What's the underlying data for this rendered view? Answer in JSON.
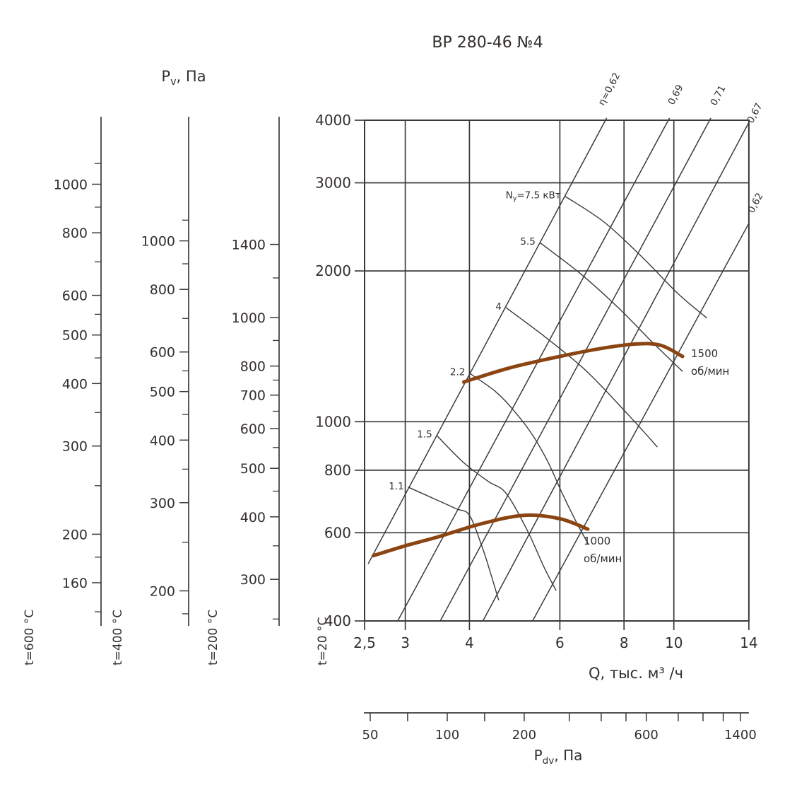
{
  "title": "ВР 280-46 №4",
  "labels": {
    "pv": {
      "base": "P",
      "sub": "v",
      "rest": ", Па"
    },
    "pdv": {
      "base": "P",
      "sub": "dv",
      "rest": ", Па"
    },
    "q_axis": "Q, тыс. м³ /ч"
  },
  "chart_data": {
    "type": "line",
    "x_axis": {
      "label": "Q, тыс. м³ /ч",
      "scale": "log",
      "range": [
        2.5,
        14
      ],
      "tick_values": [
        2.5,
        3,
        4,
        6,
        8,
        10,
        14
      ],
      "tick_labels": [
        "2,5",
        "3",
        "4",
        "6",
        "8",
        "10",
        "14"
      ],
      "grid_values": [
        3,
        4,
        6,
        8,
        10
      ]
    },
    "y_axis": {
      "label": "Pv, Па",
      "scale": "log",
      "range": [
        400,
        4000
      ],
      "tick_values": [
        4000,
        3000,
        2000,
        1000,
        800,
        600,
        400
      ],
      "grid_values": [
        3000,
        2000,
        1000,
        800,
        600
      ]
    },
    "left_scales": [
      {
        "t_label": "t=600 °C",
        "factor": 0.3356,
        "labeled_ticks": [
          1000,
          800,
          600,
          500,
          400,
          300,
          200,
          160
        ],
        "minor_ticks": [
          1100,
          900,
          700,
          550,
          450,
          350,
          250,
          180,
          140
        ]
      },
      {
        "t_label": "t=400 °C",
        "factor": 0.4354,
        "labeled_ticks": [
          1000,
          800,
          600,
          500,
          400,
          300,
          200
        ],
        "minor_ticks": [
          1100,
          900,
          700,
          550,
          450,
          350,
          250,
          180,
          160
        ]
      },
      {
        "t_label": "t=200 °C",
        "factor": 0.6195,
        "labeled_ticks": [
          1400,
          1000,
          800,
          700,
          600,
          500,
          400,
          300
        ],
        "minor_ticks": [
          1200,
          900,
          750,
          650,
          550,
          450,
          350,
          250
        ]
      }
    ],
    "t20_label": "t=20 °C",
    "pdv_scale": {
      "label": "Pdv, Па",
      "scale": "log",
      "tick_values": [
        50,
        70,
        100,
        140,
        200,
        300,
        400,
        500,
        600,
        800,
        1000,
        1200,
        1400
      ],
      "labeled_values": [
        50,
        100,
        200,
        600,
        1400
      ]
    },
    "eta_lines": [
      {
        "label": "η=0,62",
        "points": [
          [
            2.54,
            520
          ],
          [
            7.4,
            4040
          ]
        ]
      },
      {
        "label": "0,69",
        "points": [
          [
            2.9,
            400
          ],
          [
            9.81,
            4040
          ]
        ]
      },
      {
        "label": "0,71",
        "points": [
          [
            3.51,
            400
          ],
          [
            11.8,
            4040
          ]
        ]
      },
      {
        "label": "0,67",
        "points": [
          [
            4.25,
            400
          ],
          [
            14.0,
            3960
          ]
        ]
      },
      {
        "label": "0,62",
        "points": [
          [
            5.31,
            400
          ],
          [
            14.0,
            2490
          ]
        ]
      }
    ],
    "power_curves": [
      {
        "label_pre": "N",
        "label_sub": "у",
        "label_post": "=7.5 кВт",
        "power_kw": 7.5,
        "points": [
          [
            6.14,
            2820
          ],
          [
            7.33,
            2500
          ],
          [
            8.72,
            2120
          ],
          [
            10.2,
            1800
          ],
          [
            11.6,
            1610
          ]
        ]
      },
      {
        "label_post": "5.5",
        "power_kw": 5.5,
        "points": [
          [
            5.48,
            2280
          ],
          [
            6.56,
            1980
          ],
          [
            7.79,
            1690
          ],
          [
            9.15,
            1430
          ],
          [
            10.4,
            1260
          ]
        ]
      },
      {
        "label_post": "4",
        "power_kw": 4,
        "points": [
          [
            4.71,
            1690
          ],
          [
            5.6,
            1480
          ],
          [
            6.77,
            1260
          ],
          [
            8.17,
            1030
          ],
          [
            9.29,
            890
          ]
        ]
      },
      {
        "label_post": "2.2",
        "power_kw": 2.2,
        "points": [
          [
            4.0,
            1250
          ],
          [
            4.49,
            1150
          ],
          [
            4.89,
            1050
          ],
          [
            5.31,
            940
          ],
          [
            5.69,
            830
          ],
          [
            6.06,
            720
          ],
          [
            6.46,
            630
          ],
          [
            6.81,
            570
          ]
        ]
      },
      {
        "label_post": "1.5",
        "power_kw": 1.5,
        "points": [
          [
            3.45,
            940
          ],
          [
            3.89,
            830
          ],
          [
            4.35,
            760
          ],
          [
            4.71,
            720
          ],
          [
            5.17,
            610
          ],
          [
            5.6,
            510
          ],
          [
            5.9,
            460
          ]
        ]
      },
      {
        "label_post": "1.1",
        "power_kw": 1.1,
        "points": [
          [
            3.04,
            740
          ],
          [
            3.43,
            700
          ],
          [
            3.77,
            670
          ],
          [
            4.0,
            650
          ],
          [
            4.24,
            560
          ],
          [
            4.42,
            490
          ],
          [
            4.56,
            440
          ]
        ]
      }
    ],
    "speed_curves": [
      {
        "rpm": "1500",
        "unit": "об/мин",
        "color": "#8B4513",
        "points": [
          [
            3.9,
            1200
          ],
          [
            4.78,
            1280
          ],
          [
            6.0,
            1350
          ],
          [
            7.21,
            1400
          ],
          [
            8.5,
            1430
          ],
          [
            9.44,
            1420
          ],
          [
            10.4,
            1350
          ]
        ]
      },
      {
        "rpm": "1000",
        "unit": "об/мин",
        "color": "#8B4513",
        "points": [
          [
            2.6,
            540
          ],
          [
            3.0,
            565
          ],
          [
            3.5,
            590
          ],
          [
            4.21,
            625
          ],
          [
            5.1,
            650
          ],
          [
            6.0,
            640
          ],
          [
            6.8,
            610
          ]
        ]
      }
    ],
    "colors": {
      "line": "#3a3a3a",
      "speed_curve": "#8B4513",
      "text": "#332f2d"
    }
  }
}
